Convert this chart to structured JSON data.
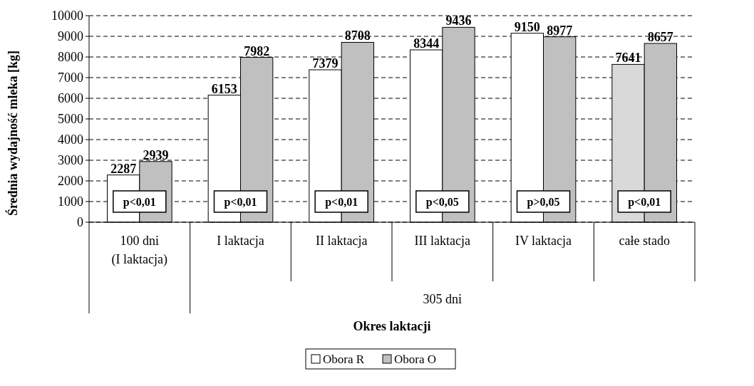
{
  "chart_data": {
    "type": "bar",
    "ylabel": "Średnia wydajność mleka [kg]",
    "xlabel": "Okres laktacji",
    "categories": [
      "100 dni\n(I laktacja)",
      "I laktacja",
      "II laktacja",
      "III laktacja",
      "IV laktacja",
      "całe stado"
    ],
    "series": [
      {
        "name": "Obora R",
        "color": "#ffffff",
        "colors": [
          "#ffffff",
          "#ffffff",
          "#ffffff",
          "#ffffff",
          "#ffffff",
          "#d9d9d9"
        ],
        "values": [
          2287,
          6153,
          7379,
          8344,
          9150,
          7641
        ]
      },
      {
        "name": "Obora O",
        "color": "#c0c0c0",
        "values": [
          2939,
          7982,
          8708,
          9436,
          8977,
          8657
        ]
      }
    ],
    "ylim": [
      0,
      10000
    ],
    "yticks": [
      0,
      1000,
      2000,
      3000,
      4000,
      5000,
      6000,
      7000,
      8000,
      9000,
      10000
    ],
    "grid": "y",
    "legend": "bottom",
    "data_labels": true,
    "annotations": [
      {
        "text": "p<0,01",
        "x": "100 dni\n(I laktacja)",
        "y": 1000
      },
      {
        "text": "p<0,01",
        "x": "I laktacja",
        "y": 1000
      },
      {
        "text": "p<0,01",
        "x": "II laktacja",
        "y": 1000
      },
      {
        "text": "p<0,05",
        "x": "III laktacja",
        "y": 1000
      },
      {
        "text": "p>0,05",
        "x": "IV laktacja",
        "y": 1000
      },
      {
        "text": "p<0,01",
        "x": "całe stado",
        "y": 1000
      },
      "305 dni"
    ]
  }
}
